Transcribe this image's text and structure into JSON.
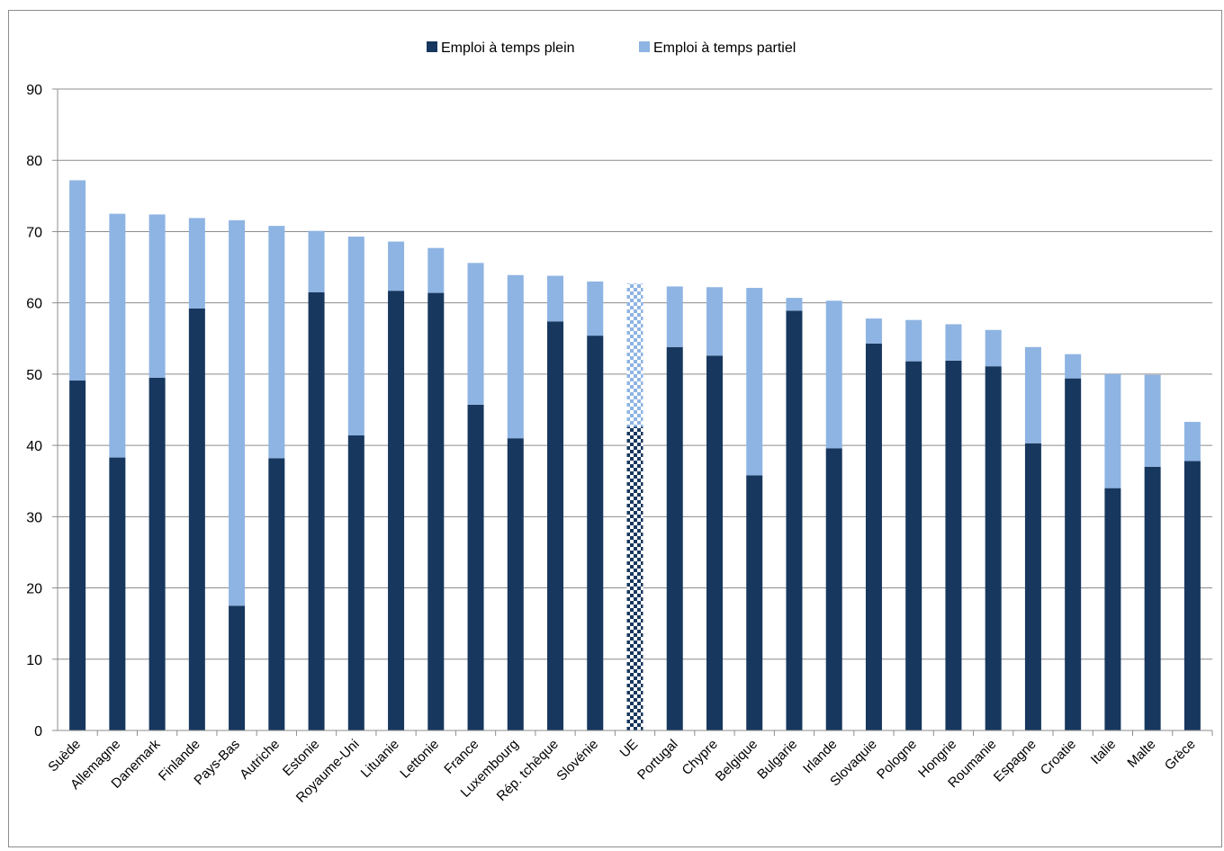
{
  "chart_data": {
    "type": "bar",
    "stacked": true,
    "categories": [
      "Suède",
      "Allemagne",
      "Danemark",
      "Finlande",
      "Pays-Bas",
      "Autriche",
      "Estonie",
      "Royaume-Uni",
      "Lituanie",
      "Lettonie",
      "France",
      "Luxembourg",
      "Rép. tchèque",
      "Slovénie",
      "UE",
      "Portugal",
      "Chypre",
      "Belgique",
      "Bulgarie",
      "Irlande",
      "Slovaquie",
      "Pologne",
      "Hongrie",
      "Roumanie",
      "Espagne",
      "Croatie",
      "Italie",
      "Malte",
      "Grèce"
    ],
    "series": [
      {
        "name": "Emploi à temps plein",
        "color": "#17375e",
        "values": [
          49.1,
          38.3,
          49.5,
          59.2,
          17.5,
          38.2,
          61.5,
          41.4,
          61.7,
          61.4,
          45.7,
          41.0,
          57.4,
          55.4,
          42.6,
          53.8,
          52.6,
          35.8,
          58.9,
          39.6,
          54.3,
          51.8,
          51.9,
          51.1,
          40.3,
          49.4,
          34.0,
          37.0,
          37.8
        ]
      },
      {
        "name": "Emploi à temps partiel",
        "color": "#8eb4e3",
        "values": [
          28.1,
          34.2,
          22.9,
          12.7,
          54.1,
          32.6,
          8.6,
          27.9,
          6.9,
          6.3,
          19.9,
          22.9,
          6.4,
          7.6,
          20.1,
          8.5,
          9.6,
          26.3,
          1.8,
          20.7,
          3.5,
          5.8,
          5.1,
          5.1,
          13.5,
          3.4,
          16.0,
          12.9,
          5.5
        ]
      }
    ],
    "highlight_category": "UE",
    "highlight_pattern": "checkerboard",
    "ylim": [
      0,
      90
    ],
    "yticks": [
      "0",
      "10",
      "20",
      "30",
      "40",
      "50",
      "60",
      "70",
      "80",
      "90"
    ],
    "grid": true,
    "legend_position": "top-center",
    "title": "",
    "xlabel": "",
    "ylabel": ""
  }
}
